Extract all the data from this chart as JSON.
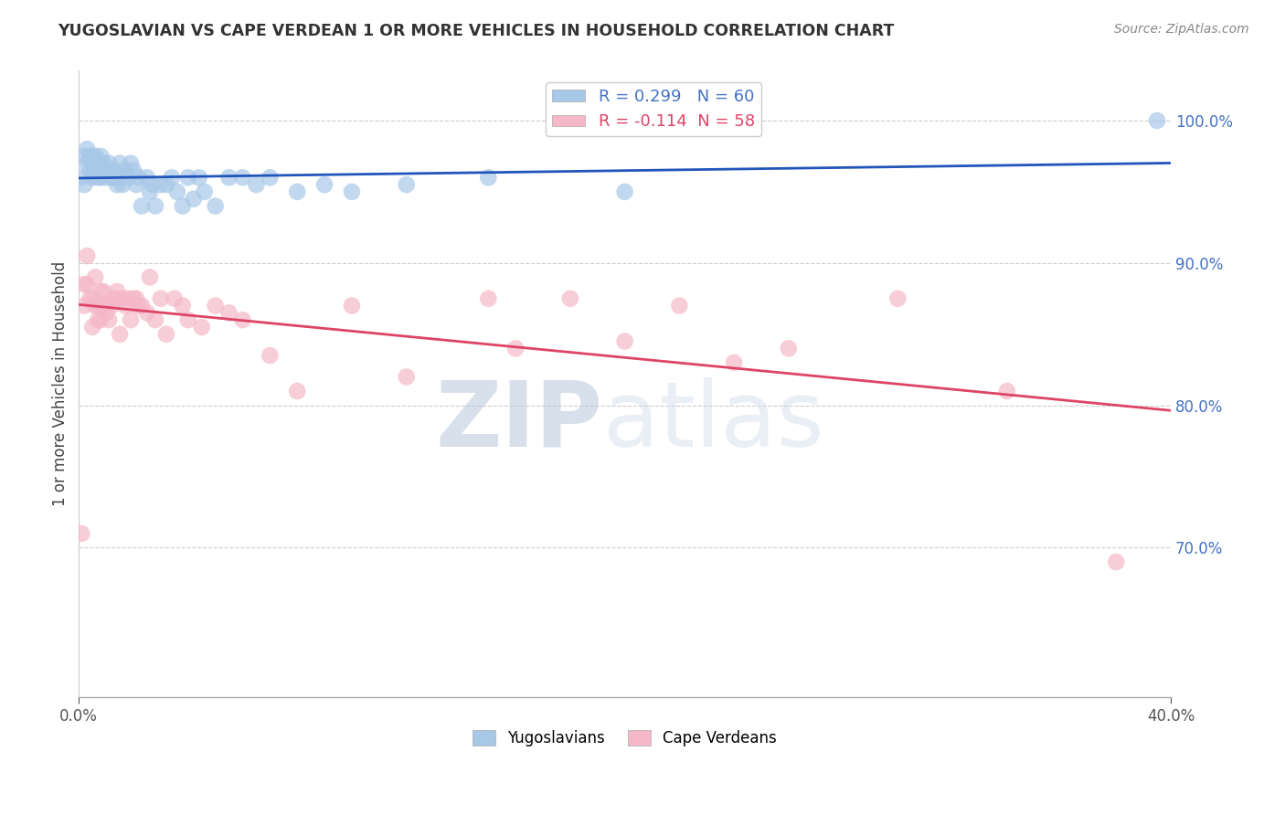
{
  "title": "YUGOSLAVIAN VS CAPE VERDEAN 1 OR MORE VEHICLES IN HOUSEHOLD CORRELATION CHART",
  "source": "Source: ZipAtlas.com",
  "ylabel": "1 or more Vehicles in Household",
  "ytick_labels": [
    "100.0%",
    "90.0%",
    "80.0%",
    "70.0%"
  ],
  "ytick_values": [
    1.0,
    0.9,
    0.8,
    0.7
  ],
  "xlim": [
    0.0,
    0.4
  ],
  "ylim": [
    0.595,
    1.035
  ],
  "blue_R": 0.299,
  "blue_N": 60,
  "pink_R": -0.114,
  "pink_N": 58,
  "blue_color": "#a8c8e8",
  "pink_color": "#f5b8c8",
  "blue_line_color": "#2255bb",
  "pink_line_color": "#dd4466",
  "legend_blue_label": "Yugoslavians",
  "legend_pink_label": "Cape Verdeans",
  "blue_x": [
    0.001,
    0.002,
    0.002,
    0.003,
    0.003,
    0.004,
    0.004,
    0.005,
    0.005,
    0.005,
    0.006,
    0.006,
    0.007,
    0.007,
    0.008,
    0.008,
    0.009,
    0.009,
    0.01,
    0.01,
    0.011,
    0.012,
    0.013,
    0.013,
    0.014,
    0.015,
    0.015,
    0.016,
    0.017,
    0.018,
    0.019,
    0.02,
    0.021,
    0.022,
    0.023,
    0.025,
    0.026,
    0.027,
    0.028,
    0.03,
    0.032,
    0.034,
    0.036,
    0.038,
    0.04,
    0.042,
    0.044,
    0.046,
    0.05,
    0.055,
    0.06,
    0.065,
    0.07,
    0.08,
    0.09,
    0.1,
    0.12,
    0.15,
    0.2,
    0.395
  ],
  "blue_y": [
    0.96,
    0.975,
    0.955,
    0.97,
    0.98,
    0.965,
    0.975,
    0.975,
    0.97,
    0.96,
    0.965,
    0.975,
    0.96,
    0.97,
    0.96,
    0.975,
    0.965,
    0.97,
    0.965,
    0.96,
    0.97,
    0.96,
    0.96,
    0.965,
    0.955,
    0.97,
    0.96,
    0.955,
    0.965,
    0.96,
    0.97,
    0.965,
    0.955,
    0.96,
    0.94,
    0.96,
    0.95,
    0.955,
    0.94,
    0.955,
    0.955,
    0.96,
    0.95,
    0.94,
    0.96,
    0.945,
    0.96,
    0.95,
    0.94,
    0.96,
    0.96,
    0.955,
    0.96,
    0.95,
    0.955,
    0.95,
    0.955,
    0.96,
    0.95,
    1.0
  ],
  "pink_x": [
    0.001,
    0.002,
    0.002,
    0.003,
    0.003,
    0.004,
    0.005,
    0.005,
    0.006,
    0.006,
    0.007,
    0.007,
    0.008,
    0.008,
    0.009,
    0.009,
    0.01,
    0.01,
    0.011,
    0.012,
    0.013,
    0.013,
    0.014,
    0.015,
    0.016,
    0.017,
    0.018,
    0.019,
    0.02,
    0.021,
    0.022,
    0.023,
    0.025,
    0.026,
    0.028,
    0.03,
    0.032,
    0.035,
    0.038,
    0.04,
    0.045,
    0.05,
    0.055,
    0.06,
    0.07,
    0.08,
    0.1,
    0.12,
    0.15,
    0.16,
    0.18,
    0.2,
    0.22,
    0.24,
    0.26,
    0.3,
    0.34,
    0.38
  ],
  "pink_y": [
    0.71,
    0.885,
    0.87,
    0.905,
    0.885,
    0.875,
    0.875,
    0.855,
    0.89,
    0.87,
    0.87,
    0.86,
    0.88,
    0.86,
    0.88,
    0.87,
    0.87,
    0.865,
    0.86,
    0.87,
    0.875,
    0.875,
    0.88,
    0.85,
    0.875,
    0.87,
    0.875,
    0.86,
    0.875,
    0.875,
    0.87,
    0.87,
    0.865,
    0.89,
    0.86,
    0.875,
    0.85,
    0.875,
    0.87,
    0.86,
    0.855,
    0.87,
    0.865,
    0.86,
    0.835,
    0.81,
    0.87,
    0.82,
    0.875,
    0.84,
    0.875,
    0.845,
    0.87,
    0.83,
    0.84,
    0.875,
    0.81,
    0.69
  ]
}
